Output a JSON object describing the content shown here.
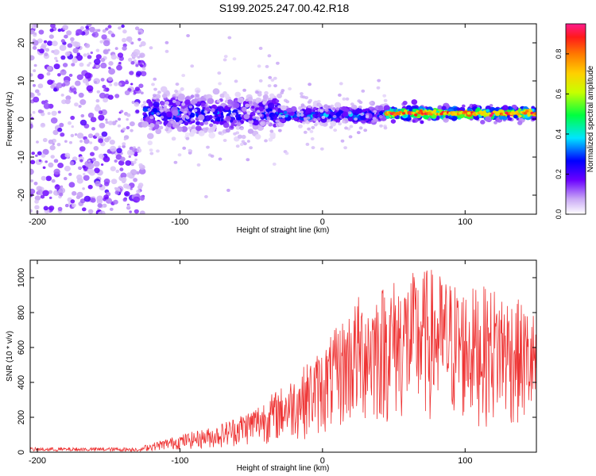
{
  "title": "S199.2025.247.00.42.R18",
  "chart_data": [
    {
      "type": "heatmap",
      "title": "S199.2025.247.00.42.R18",
      "xlabel": "Height of straight line (km)",
      "ylabel": "Frequency (Hz)",
      "xlim": [
        -205,
        150
      ],
      "ylim": [
        -25,
        25
      ],
      "xticks": [
        -200,
        -100,
        0,
        100
      ],
      "yticks": [
        -20,
        -10,
        0,
        10,
        20
      ],
      "colorbar": {
        "label": "Normalized spectral amplitude",
        "range": [
          0.0,
          0.95
        ],
        "ticks": [
          "0.0",
          "0.2",
          "0.4",
          "0.6",
          "0.8"
        ],
        "tick_values": [
          0.0,
          0.2,
          0.4,
          0.6,
          0.8
        ]
      },
      "regions": [
        {
          "x_range": [
            -205,
            -125
          ],
          "freq_center": 0,
          "freq_spread": 25,
          "amplitude_range": [
            0.05,
            0.2
          ],
          "description": "broadband scattered energy"
        },
        {
          "x_range": [
            -125,
            -30
          ],
          "freq_center": 1.5,
          "freq_spread": 5,
          "amplitude_range": [
            0.1,
            0.35
          ]
        },
        {
          "x_range": [
            -30,
            45
          ],
          "freq_center": 1.0,
          "freq_spread": 2,
          "amplitude_range": [
            0.15,
            0.45
          ]
        },
        {
          "x_range": [
            45,
            150
          ],
          "freq_center": 1.5,
          "freq_spread": 1.5,
          "amplitude_range": [
            0.4,
            0.95
          ]
        }
      ]
    },
    {
      "type": "line",
      "xlabel": "Height of straight line (km)",
      "ylabel": "SNR (10 * v/v)",
      "xlim": [
        -205,
        150
      ],
      "ylim": [
        0,
        1100
      ],
      "xticks": [
        -200,
        -100,
        0,
        100
      ],
      "yticks": [
        0,
        200,
        400,
        600,
        800,
        1000
      ],
      "color": "#ee3333",
      "envelope": {
        "x": [
          -205,
          -150,
          -125,
          -100,
          -75,
          -50,
          -25,
          0,
          25,
          50,
          75,
          100,
          125,
          150
        ],
        "y_max": [
          30,
          30,
          40,
          100,
          150,
          250,
          400,
          600,
          900,
          1000,
          1060,
          950,
          950,
          800
        ]
      }
    }
  ]
}
